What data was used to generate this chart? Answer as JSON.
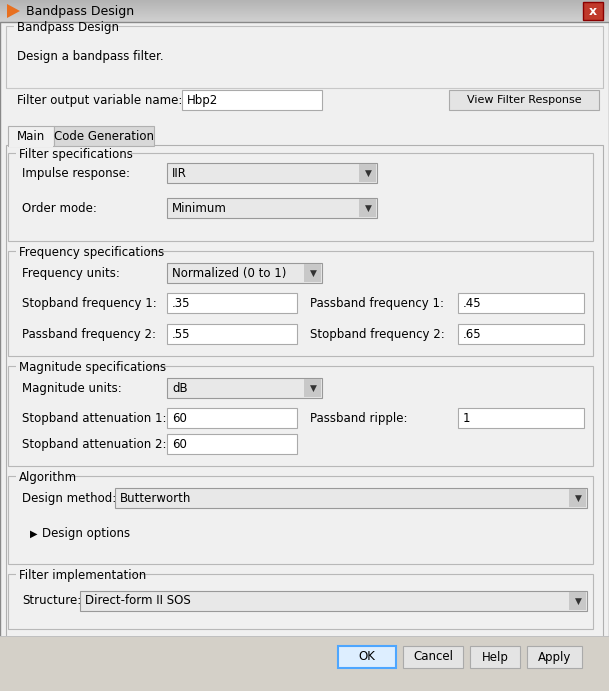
{
  "title": "Bandpass Design",
  "bg_color": "#d4d0c8",
  "content_bg": "#f0f0f0",
  "white": "#ffffff",
  "title_bar_grad_start": "#a0a0a0",
  "title_bar_grad_end": "#c8c8c8",
  "header_section_label": "Bandpass Design",
  "header_desc": "Design a bandpass filter.",
  "filter_output_label": "Filter output variable name:",
  "filter_output_value": "Hbp2",
  "view_filter_btn": "View Filter Response",
  "tab_main": "Main",
  "tab_codegen": "Code Generation",
  "filter_spec_label": "Filter specifications",
  "impulse_label": "Impulse response:",
  "impulse_value": "IIR",
  "order_label": "Order mode:",
  "order_value": "Minimum",
  "freq_spec_label": "Frequency specifications",
  "freq_units_label": "Frequency units:",
  "freq_units_value": "Normalized (0 to 1)",
  "stopband1_label": "Stopband frequency 1:",
  "stopband1_value": ".35",
  "passband1_label": "Passband frequency 1:",
  "passband1_value": ".45",
  "passband2_label": "Passband frequency 2:",
  "passband2_value": ".55",
  "stopband2_label": "Stopband frequency 2:",
  "stopband2_value": ".65",
  "mag_spec_label": "Magnitude specifications",
  "mag_units_label": "Magnitude units:",
  "mag_units_value": "dB",
  "stopband_att1_label": "Stopband attenuation 1:",
  "stopband_att1_value": "60",
  "passband_ripple_label": "Passband ripple:",
  "passband_ripple_value": "1",
  "stopband_att2_label": "Stopband attenuation 2:",
  "stopband_att2_value": "60",
  "algorithm_label": "Algorithm",
  "design_method_label": "Design method:",
  "design_method_value": "Butterworth",
  "design_options_label": "Design options",
  "filter_impl_label": "Filter implementation",
  "structure_label": "Structure:",
  "structure_value": "Direct-form II SOS",
  "ok_btn": "OK",
  "cancel_btn": "Cancel",
  "help_btn": "Help",
  "apply_btn": "Apply",
  "border_color": "#b0b0b0",
  "dropdown_arrow": "▼",
  "tri_arrow": "▶"
}
